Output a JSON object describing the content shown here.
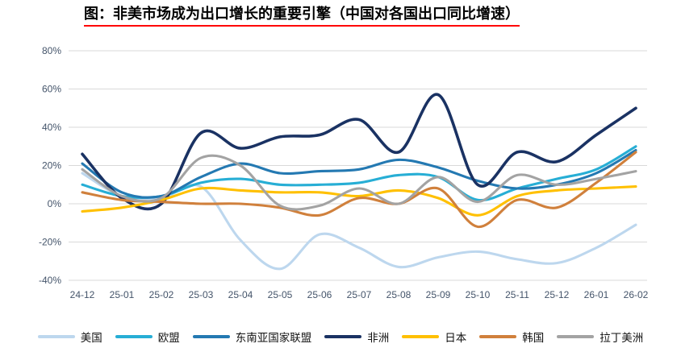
{
  "title": "图：非美市场成为出口增长的重要引擎（中国对各国出口同比增速）",
  "chart_data": {
    "type": "line",
    "title": "图：非美市场成为出口增长的重要引擎（中国对各国出口同比增速）",
    "xlabel": "",
    "ylabel": "",
    "ylim": [
      -40,
      80
    ],
    "grid": "horizontal",
    "legend_position": "bottom",
    "y_tick_values": [
      80,
      60,
      40,
      20,
      0,
      -20,
      -40
    ],
    "y_tick_labels": [
      "80%",
      "60%",
      "40%",
      "20%",
      "0%",
      "-20%",
      "-40%"
    ],
    "categories": [
      "24-12",
      "25-01",
      "25-02",
      "25-03",
      "25-04",
      "25-05",
      "25-06",
      "25-07",
      "25-08",
      "25-09",
      "25-10",
      "25-11",
      "25-12",
      "26-01",
      "26-02"
    ],
    "series": [
      {
        "name": "美国",
        "color": "#bdd7ee",
        "values": [
          16,
          4,
          3,
          9,
          -19,
          -34,
          -16,
          -23,
          -33,
          -28,
          -25,
          -29,
          -31,
          -23,
          -11
        ]
      },
      {
        "name": "欧盟",
        "color": "#27aed5",
        "values": [
          10,
          4,
          4,
          11,
          13,
          10,
          10,
          11,
          15,
          14,
          2,
          8,
          13,
          18,
          30
        ]
      },
      {
        "name": "东南亚国家联盟",
        "color": "#2479b2",
        "values": [
          21,
          6,
          4,
          14,
          21,
          16,
          17,
          18,
          23,
          19,
          12,
          8,
          10,
          16,
          28
        ]
      },
      {
        "name": "非洲",
        "color": "#1a3263",
        "values": [
          26,
          3,
          0,
          37,
          29,
          35,
          36,
          44,
          27,
          57,
          10,
          27,
          22,
          36,
          50
        ]
      },
      {
        "name": "日本",
        "color": "#ffc000",
        "values": [
          -4,
          -2,
          2,
          8,
          7,
          6,
          6,
          4,
          7,
          3,
          -6,
          4,
          7,
          8,
          9
        ]
      },
      {
        "name": "韩国",
        "color": "#d0803c",
        "values": [
          6,
          2,
          1,
          0,
          0,
          -2,
          -6,
          3,
          0,
          8,
          -12,
          2,
          -2,
          11,
          27
        ]
      },
      {
        "name": "拉丁美洲",
        "color": "#a3a3a3",
        "values": [
          18,
          4,
          3,
          24,
          20,
          -1,
          -1,
          8,
          0,
          14,
          1,
          15,
          10,
          13,
          17
        ]
      }
    ]
  },
  "style": {
    "grid_color": "#d9d9d9",
    "axis_label_color": "#44546a",
    "title_underline_color": "#ff0000"
  }
}
